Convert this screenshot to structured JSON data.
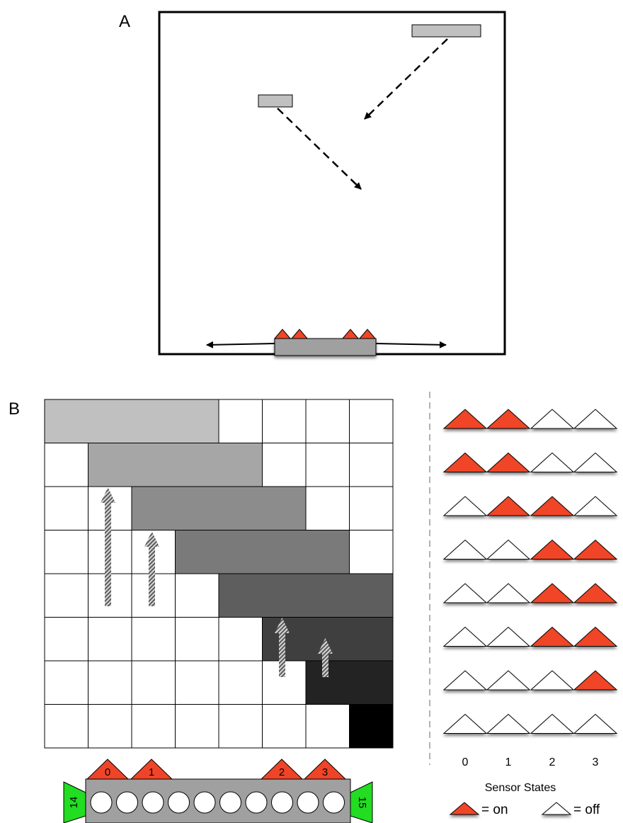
{
  "panel_a": {
    "label": "A"
  },
  "panel_b": {
    "label": "B",
    "grid": {
      "rows": 8,
      "cols": 8
    },
    "bars": [
      {
        "row": 0,
        "start_col": 0,
        "end_col": 4,
        "color": "#c0c0c0"
      },
      {
        "row": 1,
        "start_col": 1,
        "end_col": 5,
        "color": "#a6a6a6"
      },
      {
        "row": 2,
        "start_col": 2,
        "end_col": 6,
        "color": "#8c8c8c"
      },
      {
        "row": 3,
        "start_col": 3,
        "end_col": 7,
        "color": "#7a7a7a"
      },
      {
        "row": 4,
        "start_col": 4,
        "end_col": 8,
        "color": "#5e5e5e"
      },
      {
        "row": 5,
        "start_col": 5,
        "end_col": 8,
        "color": "#3f3f3f"
      },
      {
        "row": 6,
        "start_col": 6,
        "end_col": 8,
        "color": "#232323"
      },
      {
        "row": 7,
        "start_col": 7,
        "end_col": 8,
        "color": "#000000"
      }
    ],
    "sensor_bar": {
      "sensors": [
        "0",
        "1",
        "2",
        "3"
      ],
      "circle_count": 10,
      "side_labels": [
        "14",
        "15"
      ],
      "side_color": "#22dd22",
      "body_color": "#a0a0a0"
    },
    "sensor_states": {
      "rows": [
        [
          1,
          1,
          0,
          0
        ],
        [
          1,
          1,
          0,
          0
        ],
        [
          0,
          1,
          1,
          0
        ],
        [
          0,
          0,
          1,
          1
        ],
        [
          0,
          0,
          1,
          1
        ],
        [
          0,
          0,
          1,
          1
        ],
        [
          0,
          0,
          0,
          1
        ],
        [
          0,
          0,
          0,
          0
        ]
      ],
      "column_labels": [
        "0",
        "1",
        "2",
        "3"
      ],
      "title": "Sensor States",
      "legend_on": "= on",
      "legend_off": "= off",
      "on_color": "#f04428",
      "off_color": "#ffffff"
    }
  }
}
